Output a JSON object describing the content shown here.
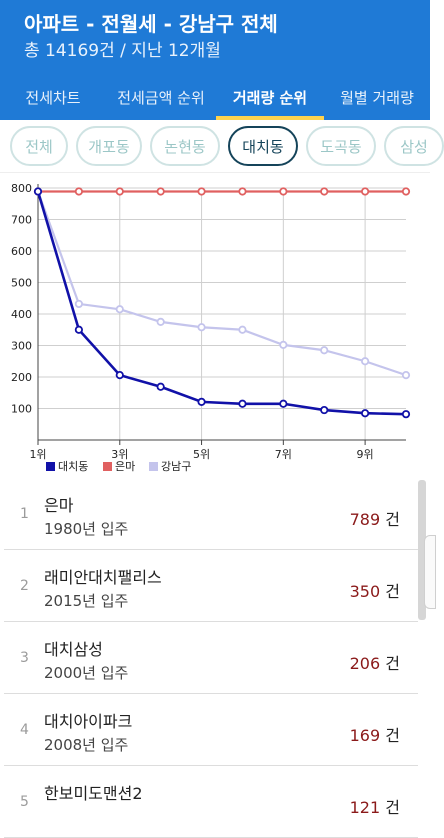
{
  "header": {
    "title": "아파트 - 전월세 - 강남구 전체",
    "subtitle": "총 14169건 / 지난 12개월"
  },
  "tabs": [
    {
      "label": "전세차트",
      "active": false
    },
    {
      "label": "전세금액 순위",
      "active": false
    },
    {
      "label": "거래량 순위",
      "active": true
    },
    {
      "label": "월별 거래량",
      "active": false
    }
  ],
  "chips": [
    {
      "label": "전체",
      "active": false
    },
    {
      "label": "개포동",
      "active": false
    },
    {
      "label": "논현동",
      "active": false
    },
    {
      "label": "대치동",
      "active": true
    },
    {
      "label": "도곡동",
      "active": false
    },
    {
      "label": "삼성",
      "active": false
    }
  ],
  "chart_data": {
    "type": "line",
    "x": [
      1,
      2,
      3,
      4,
      5,
      6,
      7,
      8,
      9,
      10
    ],
    "x_tick_labels": [
      "1위",
      "3위",
      "5위",
      "7위",
      "9위"
    ],
    "x_tick_values": [
      1,
      3,
      5,
      7,
      9
    ],
    "ylim": [
      0,
      800
    ],
    "y_ticks": [
      100,
      200,
      300,
      400,
      500,
      600,
      700,
      800
    ],
    "grid": true,
    "legend_position": "bottom-left",
    "series": [
      {
        "name": "대치동",
        "color": "#1111a8",
        "values": [
          789,
          350,
          206,
          169,
          121,
          115,
          115,
          95,
          85,
          82
        ]
      },
      {
        "name": "은마",
        "color": "#e06060",
        "values": [
          789,
          789,
          789,
          789,
          789,
          789,
          789,
          789,
          789,
          789
        ]
      },
      {
        "name": "강남구",
        "color": "#c4c4ec",
        "values": [
          789,
          432,
          415,
          375,
          358,
          350,
          302,
          285,
          250,
          206
        ]
      }
    ]
  },
  "list": {
    "unit": "건",
    "rows": [
      {
        "rank": "1",
        "name": "은마",
        "year": "1980년 입주",
        "count": "789"
      },
      {
        "rank": "2",
        "name": "래미안대치팰리스",
        "year": "2015년 입주",
        "count": "350"
      },
      {
        "rank": "3",
        "name": "대치삼성",
        "year": "2000년 입주",
        "count": "206"
      },
      {
        "rank": "4",
        "name": "대치아이파크",
        "year": "2008년 입주",
        "count": "169"
      },
      {
        "rank": "5",
        "name": "한보미도맨션2",
        "year": "",
        "count": "121"
      }
    ]
  }
}
